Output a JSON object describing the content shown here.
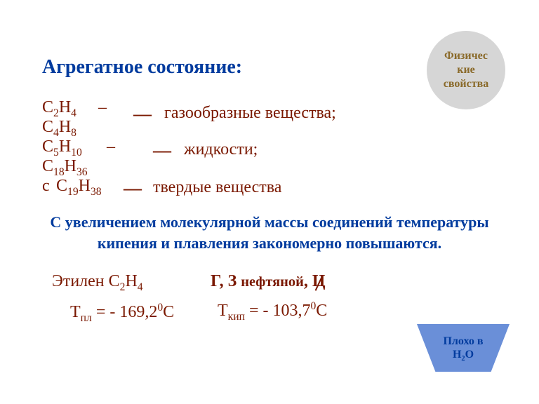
{
  "colors": {
    "heading": "#003b9e",
    "darkred": "#7a1800",
    "text": "#1a1a1a",
    "badge_bg": "#d6d6d6",
    "badge_text": "#8a6a2a",
    "trap_bg": "#6a8fd8",
    "trap_text": "#003b9e"
  },
  "badge": {
    "line1": "Физичес",
    "line2": "кие",
    "line3": "свойства",
    "fontsize": 16
  },
  "title": {
    "text": "Агрегатное состояние:",
    "fontsize": 28
  },
  "range1": {
    "from": "C<sub>2</sub>H<sub>4</sub>",
    "dash_after_from": "–",
    "to": "C<sub>4</sub>H<sub>8</sub>",
    "label": "газообразные вещества;",
    "fontsize": 24
  },
  "range2": {
    "from": "C<sub>5</sub>H<sub>10</sub>",
    "dash_after_from": "–",
    "to": "C<sub>18</sub>H<sub>36</sub>",
    "label": "жидкости;",
    "fontsize": 24
  },
  "range3": {
    "prefix": "с",
    "formula": "C<sub>19</sub>H<sub>38</sub>",
    "label": "твердые вещества",
    "fontsize": 24
  },
  "paragraph": {
    "line1": "С увеличением молекулярной массы соединений температуры",
    "line2": "кипения и плавления закономерно повышаются.",
    "fontsize": 22
  },
  "ethylene": {
    "name": "Этилен C<sub>2</sub>H<sub>4</sub>",
    "smell": "Г,   З <span style=\"font-size:.85em\">нефтяной</span>,   <span class=\"crossed\">Ц</span>",
    "tmelt": "T<span class=\"sub\">пл</span> = - 169,2<span class=\"sup\">0</span>C",
    "tboil": "T<span class=\"sub\">кип</span> = - 103,7<span class=\"sup\">0</span>C",
    "fontsize": 24
  },
  "trap": {
    "html": "Плохо в<br>H<span class=\"sub\">2</span>O",
    "fontsize": 16
  }
}
